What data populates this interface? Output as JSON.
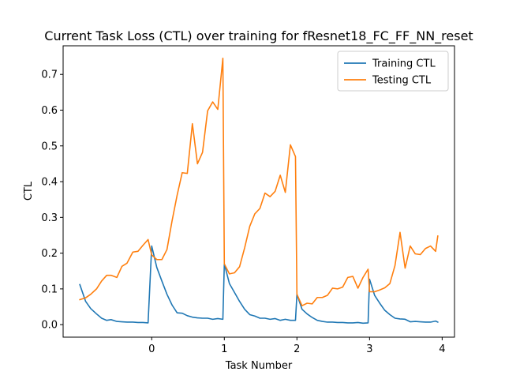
{
  "chart_data": {
    "type": "line",
    "title": "Current Task Loss (CTL) over training for fResnet18_FC_FF_NN_reset",
    "xlabel": "Task Number",
    "ylabel": "CTL",
    "xlim": [
      -1.22,
      4.17
    ],
    "ylim": [
      -0.035,
      0.78
    ],
    "xticks": [
      0,
      1,
      2,
      3,
      4
    ],
    "yticks": [
      0.0,
      0.1,
      0.2,
      0.3,
      0.4,
      0.5,
      0.6,
      0.7
    ],
    "ytick_labels": [
      "0.0",
      "0.1",
      "0.2",
      "0.3",
      "0.4",
      "0.5",
      "0.6",
      "0.7"
    ],
    "grid": false,
    "legend": "top-right",
    "series": [
      {
        "name": "Training CTL",
        "color": "#1f77b4",
        "x": [
          -0.99,
          -0.91,
          -0.84,
          -0.76,
          -0.69,
          -0.62,
          -0.56,
          -0.48,
          -0.41,
          -0.34,
          -0.26,
          -0.19,
          -0.12,
          -0.05,
          0.0,
          0.07,
          0.14,
          0.21,
          0.28,
          0.35,
          0.42,
          0.49,
          0.56,
          0.63,
          0.7,
          0.77,
          0.84,
          0.91,
          0.98,
          1.0,
          1.07,
          1.14,
          1.21,
          1.28,
          1.35,
          1.42,
          1.49,
          1.56,
          1.63,
          1.7,
          1.77,
          1.84,
          1.91,
          1.98,
          2.0,
          2.07,
          2.14,
          2.21,
          2.28,
          2.35,
          2.42,
          2.49,
          2.56,
          2.63,
          2.7,
          2.77,
          2.84,
          2.91,
          2.98,
          3.0,
          3.07,
          3.14,
          3.21,
          3.28,
          3.35,
          3.42,
          3.49,
          3.56,
          3.63,
          3.7,
          3.77,
          3.84,
          3.91,
          3.94
        ],
        "values": [
          0.112,
          0.065,
          0.045,
          0.03,
          0.018,
          0.012,
          0.014,
          0.009,
          0.008,
          0.007,
          0.007,
          0.006,
          0.006,
          0.005,
          0.22,
          0.16,
          0.122,
          0.085,
          0.055,
          0.033,
          0.032,
          0.025,
          0.021,
          0.019,
          0.018,
          0.018,
          0.015,
          0.017,
          0.015,
          0.17,
          0.115,
          0.09,
          0.065,
          0.043,
          0.028,
          0.024,
          0.018,
          0.018,
          0.015,
          0.017,
          0.012,
          0.015,
          0.012,
          0.012,
          0.085,
          0.043,
          0.03,
          0.02,
          0.012,
          0.009,
          0.007,
          0.007,
          0.006,
          0.006,
          0.005,
          0.005,
          0.006,
          0.004,
          0.005,
          0.127,
          0.082,
          0.06,
          0.04,
          0.028,
          0.018,
          0.016,
          0.015,
          0.008,
          0.009,
          0.008,
          0.007,
          0.007,
          0.01,
          0.007
        ]
      },
      {
        "name": "Testing CTL",
        "color": "#ff7f0e",
        "x": [
          -0.99,
          -0.91,
          -0.84,
          -0.76,
          -0.69,
          -0.62,
          -0.56,
          -0.48,
          -0.41,
          -0.34,
          -0.26,
          -0.19,
          -0.12,
          -0.05,
          0.0,
          0.07,
          0.14,
          0.21,
          0.28,
          0.35,
          0.42,
          0.49,
          0.56,
          0.63,
          0.7,
          0.77,
          0.84,
          0.91,
          0.98,
          1.0,
          1.07,
          1.14,
          1.21,
          1.28,
          1.35,
          1.42,
          1.49,
          1.56,
          1.63,
          1.7,
          1.77,
          1.84,
          1.91,
          1.98,
          2.0,
          2.07,
          2.14,
          2.21,
          2.28,
          2.35,
          2.42,
          2.49,
          2.56,
          2.63,
          2.7,
          2.77,
          2.84,
          2.91,
          2.98,
          3.0,
          3.07,
          3.14,
          3.21,
          3.28,
          3.35,
          3.42,
          3.49,
          3.56,
          3.63,
          3.7,
          3.77,
          3.84,
          3.91,
          3.94
        ],
        "values": [
          0.07,
          0.075,
          0.085,
          0.1,
          0.122,
          0.138,
          0.138,
          0.132,
          0.163,
          0.172,
          0.203,
          0.205,
          0.222,
          0.238,
          0.195,
          0.182,
          0.182,
          0.21,
          0.29,
          0.362,
          0.425,
          0.423,
          0.562,
          0.45,
          0.482,
          0.598,
          0.623,
          0.602,
          0.745,
          0.17,
          0.142,
          0.145,
          0.162,
          0.215,
          0.275,
          0.31,
          0.325,
          0.368,
          0.358,
          0.373,
          0.418,
          0.37,
          0.503,
          0.47,
          0.085,
          0.053,
          0.06,
          0.058,
          0.076,
          0.076,
          0.082,
          0.102,
          0.1,
          0.105,
          0.132,
          0.135,
          0.102,
          0.132,
          0.155,
          0.092,
          0.092,
          0.097,
          0.103,
          0.115,
          0.165,
          0.258,
          0.158,
          0.22,
          0.198,
          0.196,
          0.213,
          0.22,
          0.205,
          0.248
        ]
      }
    ]
  }
}
